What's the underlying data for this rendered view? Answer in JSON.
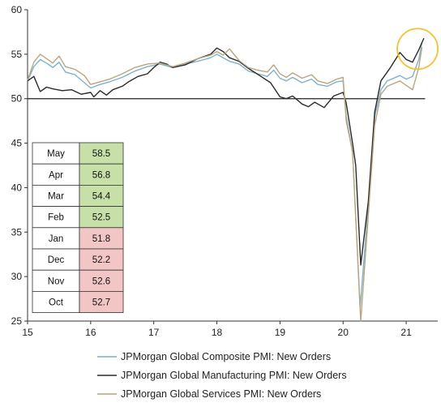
{
  "colors": {
    "composite": "#7fb2c9",
    "manufacturing": "#2a2a2a",
    "services": "#b9a67f",
    "highlight_circle": "#f2c232",
    "table_green": "#c6e0a8",
    "table_red": "#f3c6c6"
  },
  "chart_data": {
    "type": "line",
    "title": "",
    "xlabel": "",
    "ylabel": "",
    "xlim": [
      15,
      21.5
    ],
    "ylim": [
      25,
      60
    ],
    "x_ticks": [
      "15",
      "16",
      "17",
      "18",
      "19",
      "20",
      "21"
    ],
    "y_ticks": [
      "25",
      "30",
      "35",
      "40",
      "45",
      "50",
      "55",
      "60"
    ],
    "reference_line": 50,
    "series": [
      {
        "name": "JPMorgan Global Composite PMI: New Orders",
        "color_key": "composite",
        "points": [
          [
            15.0,
            52.0
          ],
          [
            15.1,
            53.6
          ],
          [
            15.2,
            54.4
          ],
          [
            15.3,
            54.0
          ],
          [
            15.4,
            53.5
          ],
          [
            15.5,
            54.1
          ],
          [
            15.6,
            53.0
          ],
          [
            15.75,
            52.7
          ],
          [
            15.9,
            51.8
          ],
          [
            16.0,
            51.2
          ],
          [
            16.15,
            51.6
          ],
          [
            16.3,
            51.9
          ],
          [
            16.5,
            52.4
          ],
          [
            16.7,
            53.1
          ],
          [
            16.9,
            53.6
          ],
          [
            17.1,
            53.9
          ],
          [
            17.3,
            53.5
          ],
          [
            17.5,
            53.9
          ],
          [
            17.7,
            54.2
          ],
          [
            17.9,
            54.6
          ],
          [
            18.0,
            55.0
          ],
          [
            18.1,
            54.6
          ],
          [
            18.2,
            54.2
          ],
          [
            18.35,
            53.9
          ],
          [
            18.5,
            53.1
          ],
          [
            18.65,
            52.8
          ],
          [
            18.8,
            52.5
          ],
          [
            18.9,
            53.2
          ],
          [
            19.0,
            52.3
          ],
          [
            19.1,
            52.0
          ],
          [
            19.2,
            52.4
          ],
          [
            19.35,
            51.8
          ],
          [
            19.5,
            52.2
          ],
          [
            19.6,
            51.6
          ],
          [
            19.75,
            51.4
          ],
          [
            19.9,
            51.9
          ],
          [
            20.0,
            52.0
          ],
          [
            20.05,
            48.0
          ],
          [
            20.15,
            44.0
          ],
          [
            20.27,
            26.5
          ],
          [
            20.4,
            38.0
          ],
          [
            20.5,
            48.0
          ],
          [
            20.6,
            51.0
          ],
          [
            20.7,
            52.0
          ],
          [
            20.8,
            52.3
          ],
          [
            20.9,
            52.6
          ],
          [
            21.0,
            52.2
          ],
          [
            21.1,
            52.5
          ],
          [
            21.2,
            54.4
          ],
          [
            21.25,
            56.3
          ]
        ]
      },
      {
        "name": "JPMorgan Global Manufacturing PMI: New Orders",
        "color_key": "manufacturing",
        "points": [
          [
            15.0,
            52.0
          ],
          [
            15.1,
            52.5
          ],
          [
            15.2,
            50.8
          ],
          [
            15.3,
            51.3
          ],
          [
            15.4,
            51.1
          ],
          [
            15.55,
            50.9
          ],
          [
            15.7,
            51.0
          ],
          [
            15.85,
            50.5
          ],
          [
            16.0,
            50.7
          ],
          [
            16.05,
            50.2
          ],
          [
            16.15,
            50.9
          ],
          [
            16.25,
            50.4
          ],
          [
            16.35,
            51.0
          ],
          [
            16.5,
            51.4
          ],
          [
            16.6,
            51.9
          ],
          [
            16.75,
            52.5
          ],
          [
            16.9,
            52.8
          ],
          [
            17.0,
            53.5
          ],
          [
            17.1,
            54.1
          ],
          [
            17.2,
            53.9
          ],
          [
            17.3,
            53.5
          ],
          [
            17.5,
            53.8
          ],
          [
            17.7,
            54.5
          ],
          [
            17.9,
            55.0
          ],
          [
            18.0,
            55.7
          ],
          [
            18.1,
            55.3
          ],
          [
            18.2,
            54.6
          ],
          [
            18.35,
            54.2
          ],
          [
            18.5,
            53.4
          ],
          [
            18.7,
            52.5
          ],
          [
            18.85,
            51.8
          ],
          [
            19.0,
            50.2
          ],
          [
            19.1,
            50.0
          ],
          [
            19.2,
            50.3
          ],
          [
            19.35,
            49.4
          ],
          [
            19.45,
            49.1
          ],
          [
            19.55,
            49.6
          ],
          [
            19.7,
            49.0
          ],
          [
            19.85,
            50.3
          ],
          [
            20.0,
            50.7
          ],
          [
            20.05,
            49.5
          ],
          [
            20.15,
            45.0
          ],
          [
            20.2,
            42.5
          ],
          [
            20.28,
            31.3
          ],
          [
            20.4,
            38.5
          ],
          [
            20.5,
            48.5
          ],
          [
            20.6,
            52.0
          ],
          [
            20.75,
            53.5
          ],
          [
            20.9,
            55.2
          ],
          [
            21.0,
            54.4
          ],
          [
            21.1,
            54.1
          ],
          [
            21.2,
            55.5
          ],
          [
            21.28,
            56.8
          ]
        ]
      },
      {
        "name": "JPMorgan Global Services PMI: New Orders",
        "color_key": "services",
        "points": [
          [
            15.0,
            52.1
          ],
          [
            15.1,
            54.1
          ],
          [
            15.2,
            55.0
          ],
          [
            15.3,
            54.5
          ],
          [
            15.4,
            54.0
          ],
          [
            15.5,
            54.8
          ],
          [
            15.6,
            53.6
          ],
          [
            15.75,
            53.3
          ],
          [
            15.9,
            52.6
          ],
          [
            16.0,
            51.6
          ],
          [
            16.15,
            51.9
          ],
          [
            16.3,
            52.2
          ],
          [
            16.5,
            52.8
          ],
          [
            16.7,
            53.5
          ],
          [
            16.9,
            53.9
          ],
          [
            17.1,
            54.0
          ],
          [
            17.3,
            53.6
          ],
          [
            17.5,
            54.0
          ],
          [
            17.7,
            54.5
          ],
          [
            17.9,
            54.9
          ],
          [
            18.0,
            55.3
          ],
          [
            18.1,
            54.9
          ],
          [
            18.2,
            55.6
          ],
          [
            18.35,
            54.3
          ],
          [
            18.5,
            53.5
          ],
          [
            18.65,
            53.2
          ],
          [
            18.8,
            53.0
          ],
          [
            18.9,
            53.8
          ],
          [
            19.0,
            52.8
          ],
          [
            19.1,
            52.4
          ],
          [
            19.2,
            52.9
          ],
          [
            19.35,
            52.3
          ],
          [
            19.5,
            52.7
          ],
          [
            19.6,
            52.0
          ],
          [
            19.75,
            51.7
          ],
          [
            19.9,
            52.2
          ],
          [
            20.0,
            52.4
          ],
          [
            20.05,
            47.5
          ],
          [
            20.15,
            44.0
          ],
          [
            20.28,
            25.0
          ],
          [
            20.4,
            37.0
          ],
          [
            20.5,
            47.0
          ],
          [
            20.6,
            50.5
          ],
          [
            20.7,
            51.4
          ],
          [
            20.8,
            51.7
          ],
          [
            20.9,
            52.0
          ],
          [
            21.0,
            51.5
          ],
          [
            21.1,
            51.0
          ],
          [
            21.2,
            53.5
          ],
          [
            21.25,
            55.8
          ]
        ]
      }
    ],
    "highlight": {
      "x": 21.18,
      "y": 55.6
    },
    "table": {
      "rows": [
        {
          "label": "May",
          "value": "58.5",
          "status": "green"
        },
        {
          "label": "Apr",
          "value": "56.8",
          "status": "green"
        },
        {
          "label": "Mar",
          "value": "54.4",
          "status": "green"
        },
        {
          "label": "Feb",
          "value": "52.5",
          "status": "green"
        },
        {
          "label": "Jan",
          "value": "51.8",
          "status": "red"
        },
        {
          "label": "Dec",
          "value": "52.2",
          "status": "red"
        },
        {
          "label": "Nov",
          "value": "52.6",
          "status": "red"
        },
        {
          "label": "Oct",
          "value": "52.7",
          "status": "red"
        }
      ]
    }
  }
}
